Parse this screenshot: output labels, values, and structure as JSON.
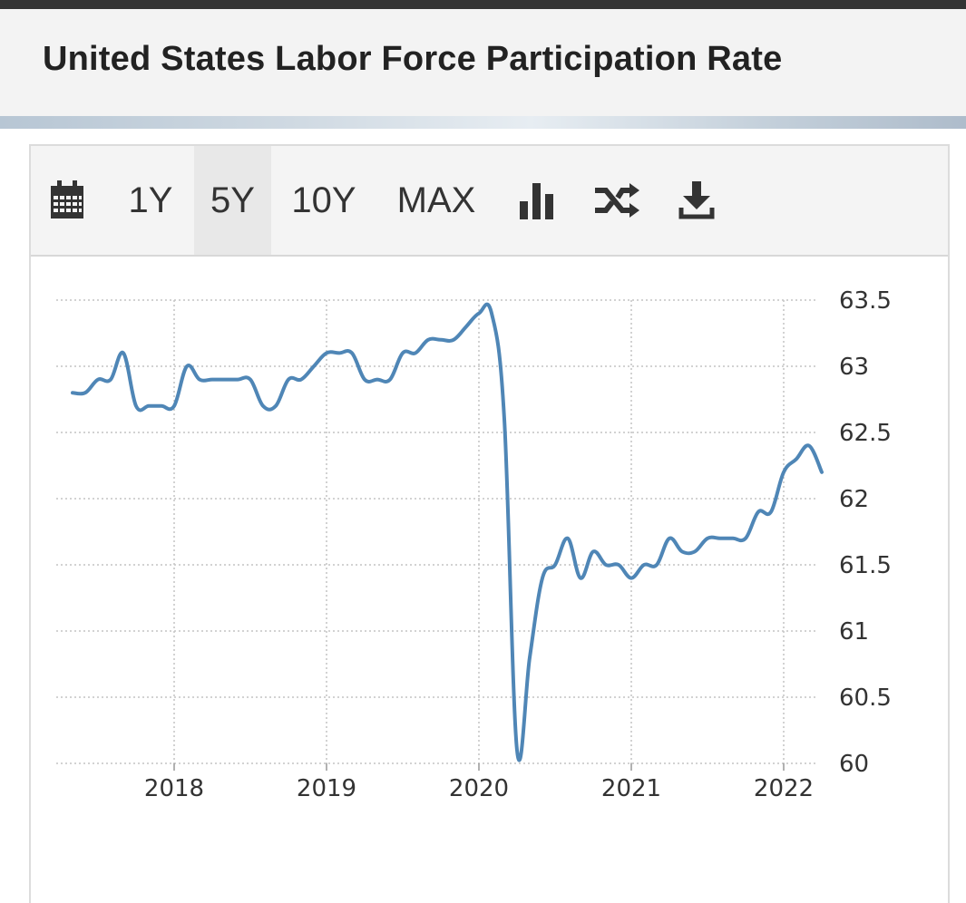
{
  "page": {
    "title": "United States Labor Force Participation Rate"
  },
  "toolbar": {
    "calendar_icon": "calendar-icon",
    "ranges": [
      "1Y",
      "5Y",
      "10Y",
      "MAX"
    ],
    "active_range": "5Y",
    "chart_type_icon": "bar-chart-icon",
    "compare_icon": "shuffle-icon",
    "download_icon": "download-icon"
  },
  "chart_data": {
    "type": "line",
    "title": "",
    "xlabel": "",
    "ylabel": "",
    "ylim": [
      60,
      63.5
    ],
    "y_ticks": [
      63.5,
      63,
      62.5,
      62,
      61.5,
      61,
      60.5,
      60
    ],
    "y_tick_labels": [
      "63.5",
      "63",
      "62.5",
      "62",
      "61.5",
      "61",
      "60.5",
      "60"
    ],
    "x_ticks": [
      "2018",
      "2019",
      "2020",
      "2021",
      "2022"
    ],
    "grid": true,
    "line_color": "#4f86b6",
    "series": [
      {
        "x": [
          "2017-05",
          "2017-06",
          "2017-07",
          "2017-08",
          "2017-09",
          "2017-10",
          "2017-11",
          "2017-12",
          "2018-01",
          "2018-02",
          "2018-03",
          "2018-04",
          "2018-05",
          "2018-06",
          "2018-07",
          "2018-08",
          "2018-09",
          "2018-10",
          "2018-11",
          "2018-12",
          "2019-01",
          "2019-02",
          "2019-03",
          "2019-04",
          "2019-05",
          "2019-06",
          "2019-07",
          "2019-08",
          "2019-09",
          "2019-10",
          "2019-11",
          "2019-12",
          "2020-01",
          "2020-02",
          "2020-03",
          "2020-04",
          "2020-05",
          "2020-06",
          "2020-07",
          "2020-08",
          "2020-09",
          "2020-10",
          "2020-11",
          "2020-12",
          "2021-01",
          "2021-02",
          "2021-03",
          "2021-04",
          "2021-05",
          "2021-06",
          "2021-07",
          "2021-08",
          "2021-09",
          "2021-10",
          "2021-11",
          "2021-12",
          "2022-01",
          "2022-02",
          "2022-03",
          "2022-04"
        ],
        "values": [
          62.8,
          62.8,
          62.9,
          62.9,
          63.1,
          62.7,
          62.7,
          62.7,
          62.7,
          63.0,
          62.9,
          62.9,
          62.9,
          62.9,
          62.9,
          62.7,
          62.7,
          62.9,
          62.9,
          63.0,
          63.1,
          63.1,
          63.1,
          62.9,
          62.9,
          62.9,
          63.1,
          63.1,
          63.2,
          63.2,
          63.2,
          63.3,
          63.4,
          63.4,
          62.6,
          60.1,
          60.8,
          61.4,
          61.5,
          61.7,
          61.4,
          61.6,
          61.5,
          61.5,
          61.4,
          61.5,
          61.5,
          61.7,
          61.6,
          61.6,
          61.7,
          61.7,
          61.7,
          61.7,
          61.9,
          61.9,
          62.2,
          62.3,
          62.4,
          62.2
        ]
      }
    ]
  }
}
